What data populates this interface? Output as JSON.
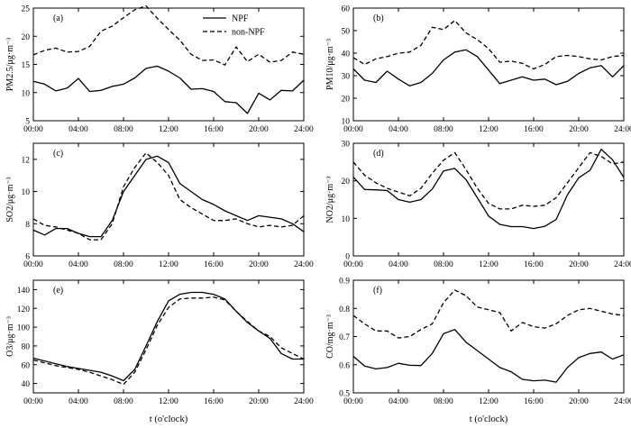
{
  "figure": {
    "x_axis_label": "t (o'clock)",
    "x_tick_labels": [
      "00:00",
      "04:00",
      "08:00",
      "12:00",
      "16:00",
      "20:00",
      "24:00"
    ],
    "legend": [
      "NPF",
      "non-NPF"
    ]
  },
  "chart_data": [
    {
      "type": "line",
      "panel": "(a)",
      "ylabel": "PM2.5/μg·m⁻³",
      "x_range": [
        0,
        24
      ],
      "ylim": [
        5,
        25
      ],
      "yticks": [
        5,
        10,
        15,
        20,
        25
      ],
      "x": [
        0,
        1,
        2,
        3,
        4,
        5,
        6,
        7,
        8,
        9,
        10,
        11,
        12,
        13,
        14,
        15,
        16,
        17,
        18,
        19,
        20,
        21,
        22,
        23,
        24
      ],
      "series": [
        {
          "name": "NPF",
          "style": "solid",
          "values": [
            12.0,
            11.5,
            10.3,
            10.8,
            12.5,
            10.2,
            10.4,
            11.1,
            11.5,
            12.6,
            14.3,
            14.7,
            13.8,
            12.6,
            10.6,
            10.7,
            10.2,
            8.4,
            8.2,
            6.3,
            9.9,
            8.7,
            10.4,
            10.3,
            12.2
          ]
        },
        {
          "name": "non-NPF",
          "style": "dashed",
          "values": [
            16.7,
            17.5,
            17.9,
            17.2,
            17.3,
            18.2,
            20.9,
            21.8,
            23.3,
            24.7,
            25.4,
            23.2,
            21.2,
            19.3,
            16.8,
            15.7,
            15.8,
            14.9,
            18.1,
            15.5,
            16.8,
            15.4,
            15.7,
            17.2,
            16.8
          ]
        }
      ]
    },
    {
      "type": "line",
      "panel": "(b)",
      "ylabel": "PM10/μg·m⁻³",
      "x_range": [
        0,
        24
      ],
      "ylim": [
        10,
        60
      ],
      "yticks": [
        10,
        20,
        30,
        40,
        50,
        60
      ],
      "x": [
        0,
        1,
        2,
        3,
        4,
        5,
        6,
        7,
        8,
        9,
        10,
        11,
        12,
        13,
        14,
        15,
        16,
        17,
        18,
        19,
        20,
        21,
        22,
        23,
        24
      ],
      "series": [
        {
          "name": "NPF",
          "style": "solid",
          "values": [
            33.0,
            28.0,
            27.0,
            32.0,
            28.5,
            25.5,
            27.0,
            31.0,
            37.0,
            40.5,
            41.5,
            38.5,
            32.5,
            26.5,
            28.0,
            29.5,
            28.0,
            28.5,
            26.0,
            27.5,
            31.0,
            33.5,
            34.5,
            29.5,
            34.5
          ]
        },
        {
          "name": "non-NPF",
          "style": "dashed",
          "values": [
            38.0,
            35.0,
            37.5,
            38.5,
            40.0,
            40.5,
            43.5,
            51.5,
            50.5,
            54.5,
            49.0,
            46.0,
            42.0,
            36.0,
            36.5,
            35.5,
            33.0,
            35.0,
            38.5,
            39.0,
            38.5,
            37.5,
            37.0,
            38.5,
            39.0
          ]
        }
      ]
    },
    {
      "type": "line",
      "panel": "(c)",
      "ylabel": "SO2/μg·m⁻³",
      "x_range": [
        0,
        24
      ],
      "ylim": [
        6,
        13
      ],
      "yticks": [
        6,
        8,
        10,
        12
      ],
      "x": [
        0,
        1,
        2,
        3,
        4,
        5,
        6,
        7,
        8,
        9,
        10,
        11,
        12,
        13,
        14,
        15,
        16,
        17,
        18,
        19,
        20,
        21,
        22,
        23,
        24
      ],
      "series": [
        {
          "name": "NPF",
          "style": "solid",
          "values": [
            7.6,
            7.3,
            7.7,
            7.7,
            7.4,
            7.2,
            7.2,
            8.2,
            10.0,
            11.0,
            12.0,
            12.2,
            11.8,
            10.5,
            10.0,
            9.5,
            9.2,
            8.8,
            8.5,
            8.2,
            8.5,
            8.4,
            8.3,
            8.0,
            7.5
          ]
        },
        {
          "name": "non-NPF",
          "style": "dashed",
          "values": [
            8.3,
            7.9,
            7.8,
            7.6,
            7.4,
            7.0,
            7.0,
            8.0,
            10.3,
            11.5,
            12.4,
            11.8,
            11.0,
            9.5,
            9.0,
            8.6,
            8.2,
            8.2,
            8.3,
            8.0,
            7.8,
            7.9,
            7.8,
            7.9,
            8.5
          ]
        }
      ]
    },
    {
      "type": "line",
      "panel": "(d)",
      "ylabel": "NO2/μg·m⁻³",
      "x_range": [
        0,
        24
      ],
      "ylim": [
        0,
        30
      ],
      "yticks": [
        0,
        10,
        20,
        30
      ],
      "x": [
        0,
        1,
        2,
        3,
        4,
        5,
        6,
        7,
        8,
        9,
        10,
        11,
        12,
        13,
        14,
        15,
        16,
        17,
        18,
        19,
        20,
        21,
        22,
        23,
        24
      ],
      "series": [
        {
          "name": "NPF",
          "style": "solid",
          "values": [
            21.0,
            17.7,
            17.6,
            17.4,
            15.0,
            14.3,
            15.0,
            17.8,
            22.6,
            23.3,
            20.3,
            15.5,
            10.6,
            8.4,
            7.8,
            7.8,
            7.3,
            7.9,
            9.7,
            16.3,
            20.8,
            22.8,
            28.4,
            25.6,
            20.9
          ]
        },
        {
          "name": "non-NPF",
          "style": "dashed",
          "values": [
            25.0,
            21.5,
            19.5,
            18.0,
            17.0,
            16.0,
            18.0,
            22.0,
            25.5,
            27.5,
            23.0,
            18.0,
            14.0,
            12.5,
            12.5,
            13.5,
            13.2,
            13.5,
            15.5,
            19.5,
            23.5,
            27.5,
            26.5,
            24.5,
            25.0
          ]
        }
      ]
    },
    {
      "type": "line",
      "panel": "(e)",
      "ylabel": "O3/μg·m⁻³",
      "x_range": [
        0,
        24
      ],
      "ylim": [
        30,
        150
      ],
      "yticks": [
        40,
        60,
        80,
        100,
        120,
        140
      ],
      "x": [
        0,
        1,
        2,
        3,
        4,
        5,
        6,
        7,
        8,
        9,
        10,
        11,
        12,
        13,
        14,
        15,
        16,
        17,
        18,
        19,
        20,
        21,
        22,
        23,
        24
      ],
      "series": [
        {
          "name": "NPF",
          "style": "solid",
          "values": [
            67,
            64,
            61,
            58,
            56,
            54,
            52,
            48,
            43,
            55,
            80,
            106,
            128,
            135,
            137,
            137,
            135,
            130,
            117,
            105,
            96,
            88,
            72,
            66,
            66
          ]
        },
        {
          "name": "non-NPF",
          "style": "dashed",
          "values": [
            65,
            62,
            59,
            57,
            55,
            52,
            48,
            44,
            39,
            52,
            76,
            102,
            121,
            130,
            131,
            131,
            132,
            129,
            117,
            106,
            96,
            90,
            78,
            72,
            66
          ]
        }
      ]
    },
    {
      "type": "line",
      "panel": "(f)",
      "ylabel": "CO/mg·m⁻³",
      "x_range": [
        0,
        24
      ],
      "ylim": [
        0.5,
        0.9
      ],
      "yticks": [
        0.5,
        0.6,
        0.7,
        0.8,
        0.9
      ],
      "x": [
        0,
        1,
        2,
        3,
        4,
        5,
        6,
        7,
        8,
        9,
        10,
        11,
        12,
        13,
        14,
        15,
        16,
        17,
        18,
        19,
        20,
        21,
        22,
        23,
        24
      ],
      "series": [
        {
          "name": "NPF",
          "style": "solid",
          "values": [
            0.63,
            0.595,
            0.585,
            0.59,
            0.605,
            0.598,
            0.597,
            0.64,
            0.71,
            0.725,
            0.68,
            0.65,
            0.62,
            0.59,
            0.575,
            0.548,
            0.543,
            0.545,
            0.538,
            0.59,
            0.625,
            0.64,
            0.645,
            0.62,
            0.635
          ]
        },
        {
          "name": "non-NPF",
          "style": "dashed",
          "values": [
            0.775,
            0.745,
            0.72,
            0.72,
            0.695,
            0.7,
            0.725,
            0.745,
            0.82,
            0.865,
            0.845,
            0.805,
            0.795,
            0.785,
            0.72,
            0.75,
            0.735,
            0.73,
            0.745,
            0.775,
            0.795,
            0.8,
            0.79,
            0.78,
            0.775
          ]
        }
      ]
    }
  ]
}
